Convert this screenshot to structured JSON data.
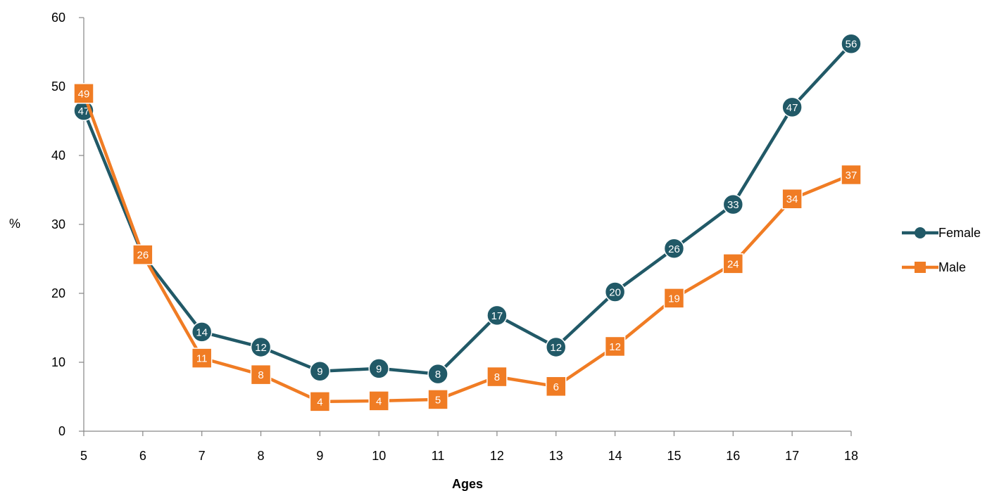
{
  "chart_data": {
    "type": "line",
    "title": "",
    "xlabel": "Ages",
    "ylabel": "%",
    "x": [
      5,
      6,
      7,
      8,
      9,
      10,
      11,
      12,
      13,
      14,
      15,
      16,
      17,
      18
    ],
    "xlim": [
      5,
      18
    ],
    "ylim": [
      0,
      60
    ],
    "yticks": [
      0,
      10,
      20,
      30,
      40,
      50,
      60
    ],
    "grid": false,
    "legend_position": "right",
    "series": [
      {
        "name": "Female",
        "color": "#215967",
        "marker": "circle",
        "values": [
          46.5,
          25.5,
          14.4,
          12.2,
          8.7,
          9.1,
          8.3,
          16.8,
          12.2,
          20.2,
          26.5,
          32.9,
          47.0,
          56.2
        ],
        "labels": [
          "47",
          "26",
          "14",
          "12",
          "9",
          "9",
          "8",
          "17",
          "12",
          "20",
          "26",
          "33",
          "47",
          "56"
        ]
      },
      {
        "name": "Male",
        "color": "#F07C24",
        "marker": "square",
        "values": [
          49.0,
          25.6,
          10.6,
          8.2,
          4.3,
          4.4,
          4.6,
          7.9,
          6.5,
          12.3,
          19.3,
          24.3,
          33.7,
          37.2
        ],
        "labels": [
          "49",
          "26",
          "11",
          "8",
          "4",
          "4",
          "5",
          "8",
          "6",
          "12",
          "19",
          "24",
          "34",
          "37"
        ]
      }
    ]
  }
}
